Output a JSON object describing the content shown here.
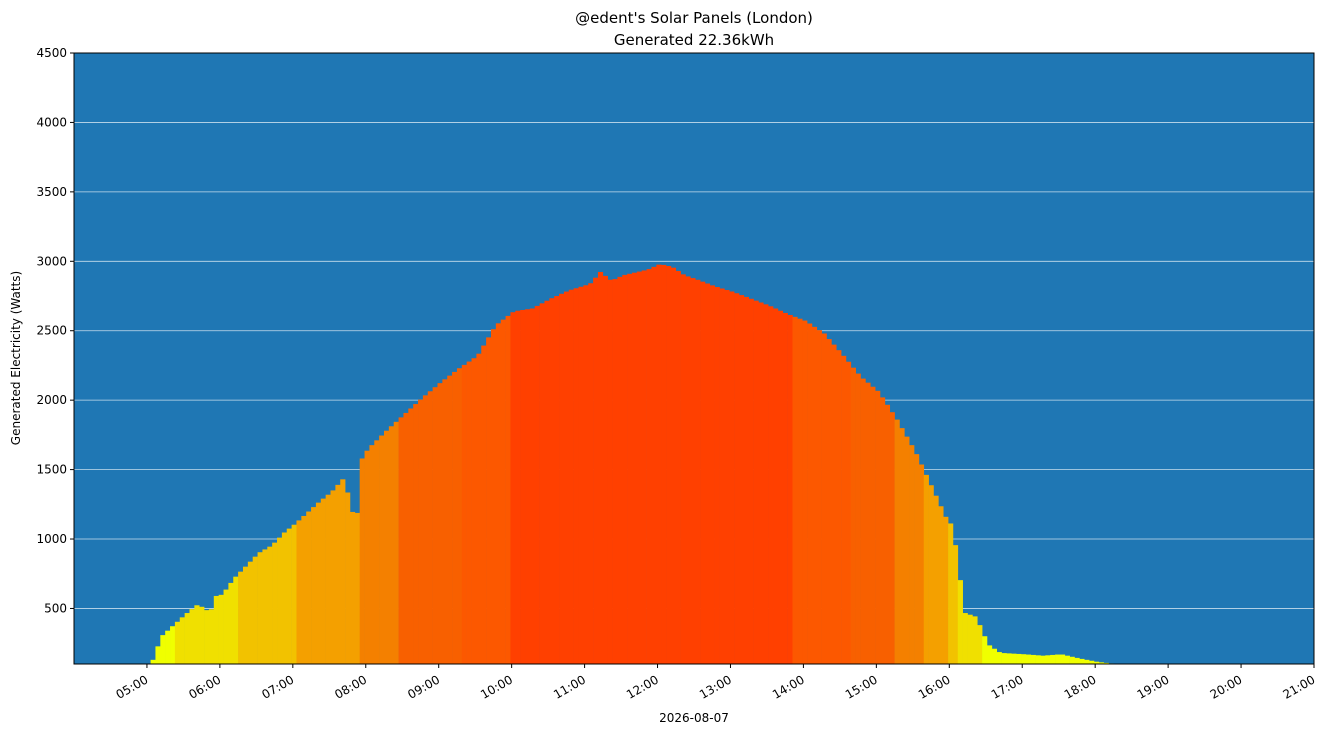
{
  "chart_data": {
    "type": "area",
    "title": "@edent's Solar Panels (London)",
    "subtitle": "Generated 22.36kWh",
    "xlabel": "2026-08-07",
    "ylabel": "Generated Electricity (Watts)",
    "ylim": [
      100,
      4500
    ],
    "xlim": [
      "04:00",
      "21:00"
    ],
    "y_ticks": [
      500,
      1000,
      1500,
      2000,
      2500,
      3000,
      3500,
      4000,
      4500
    ],
    "x_ticks": [
      "05:00",
      "06:00",
      "07:00",
      "08:00",
      "09:00",
      "10:00",
      "11:00",
      "12:00",
      "13:00",
      "14:00",
      "15:00",
      "16:00",
      "17:00",
      "18:00",
      "19:00",
      "20:00",
      "21:00"
    ],
    "grid": "horizontal",
    "background_color": "#1f77b4",
    "grid_color": "#ffffff",
    "color_scale": [
      "#f0ff00",
      "#f0e000",
      "#f2c200",
      "#f4a000",
      "#f48000",
      "#f86000",
      "#fc5800",
      "#ff4000"
    ],
    "series": [
      {
        "x": [
          "05:03",
          "05:10",
          "05:20",
          "05:30",
          "05:40",
          "05:45",
          "05:50",
          "05:55",
          "06:00",
          "06:10",
          "06:20",
          "06:30",
          "06:40",
          "06:45",
          "06:50",
          "07:00",
          "07:10",
          "07:20",
          "07:30",
          "07:40",
          "07:50",
          "07:55",
          "08:00",
          "08:15",
          "08:30",
          "08:45",
          "09:00",
          "09:15",
          "09:30",
          "09:45",
          "10:00",
          "10:15",
          "10:30",
          "10:45",
          "11:00",
          "11:05",
          "11:10",
          "11:20",
          "11:30",
          "11:40",
          "11:50",
          "12:00",
          "12:10",
          "12:20",
          "12:30",
          "12:45",
          "13:00",
          "13:15",
          "13:30",
          "13:45",
          "14:00",
          "14:15",
          "14:30",
          "14:45",
          "15:00",
          "15:15",
          "15:30",
          "15:45",
          "15:55",
          "16:00",
          "16:05",
          "16:10",
          "16:20",
          "16:30",
          "16:40",
          "17:00",
          "17:15",
          "17:30",
          "17:45",
          "18:00",
          "18:15"
        ],
        "y": [
          130,
          300,
          380,
          460,
          530,
          500,
          470,
          590,
          600,
          720,
          810,
          900,
          950,
          990,
          1040,
          1110,
          1190,
          1270,
          1340,
          1440,
          1090,
          1580,
          1650,
          1780,
          1900,
          2020,
          2130,
          2230,
          2320,
          2540,
          2640,
          2660,
          2730,
          2790,
          2830,
          2850,
          2930,
          2860,
          2900,
          2920,
          2940,
          2980,
          2960,
          2900,
          2870,
          2820,
          2780,
          2730,
          2680,
          2620,
          2570,
          2480,
          2330,
          2170,
          2060,
          1860,
          1630,
          1350,
          1160,
          1100,
          860,
          470,
          440,
          240,
          180,
          170,
          160,
          170,
          140,
          115,
          100
        ]
      }
    ]
  }
}
